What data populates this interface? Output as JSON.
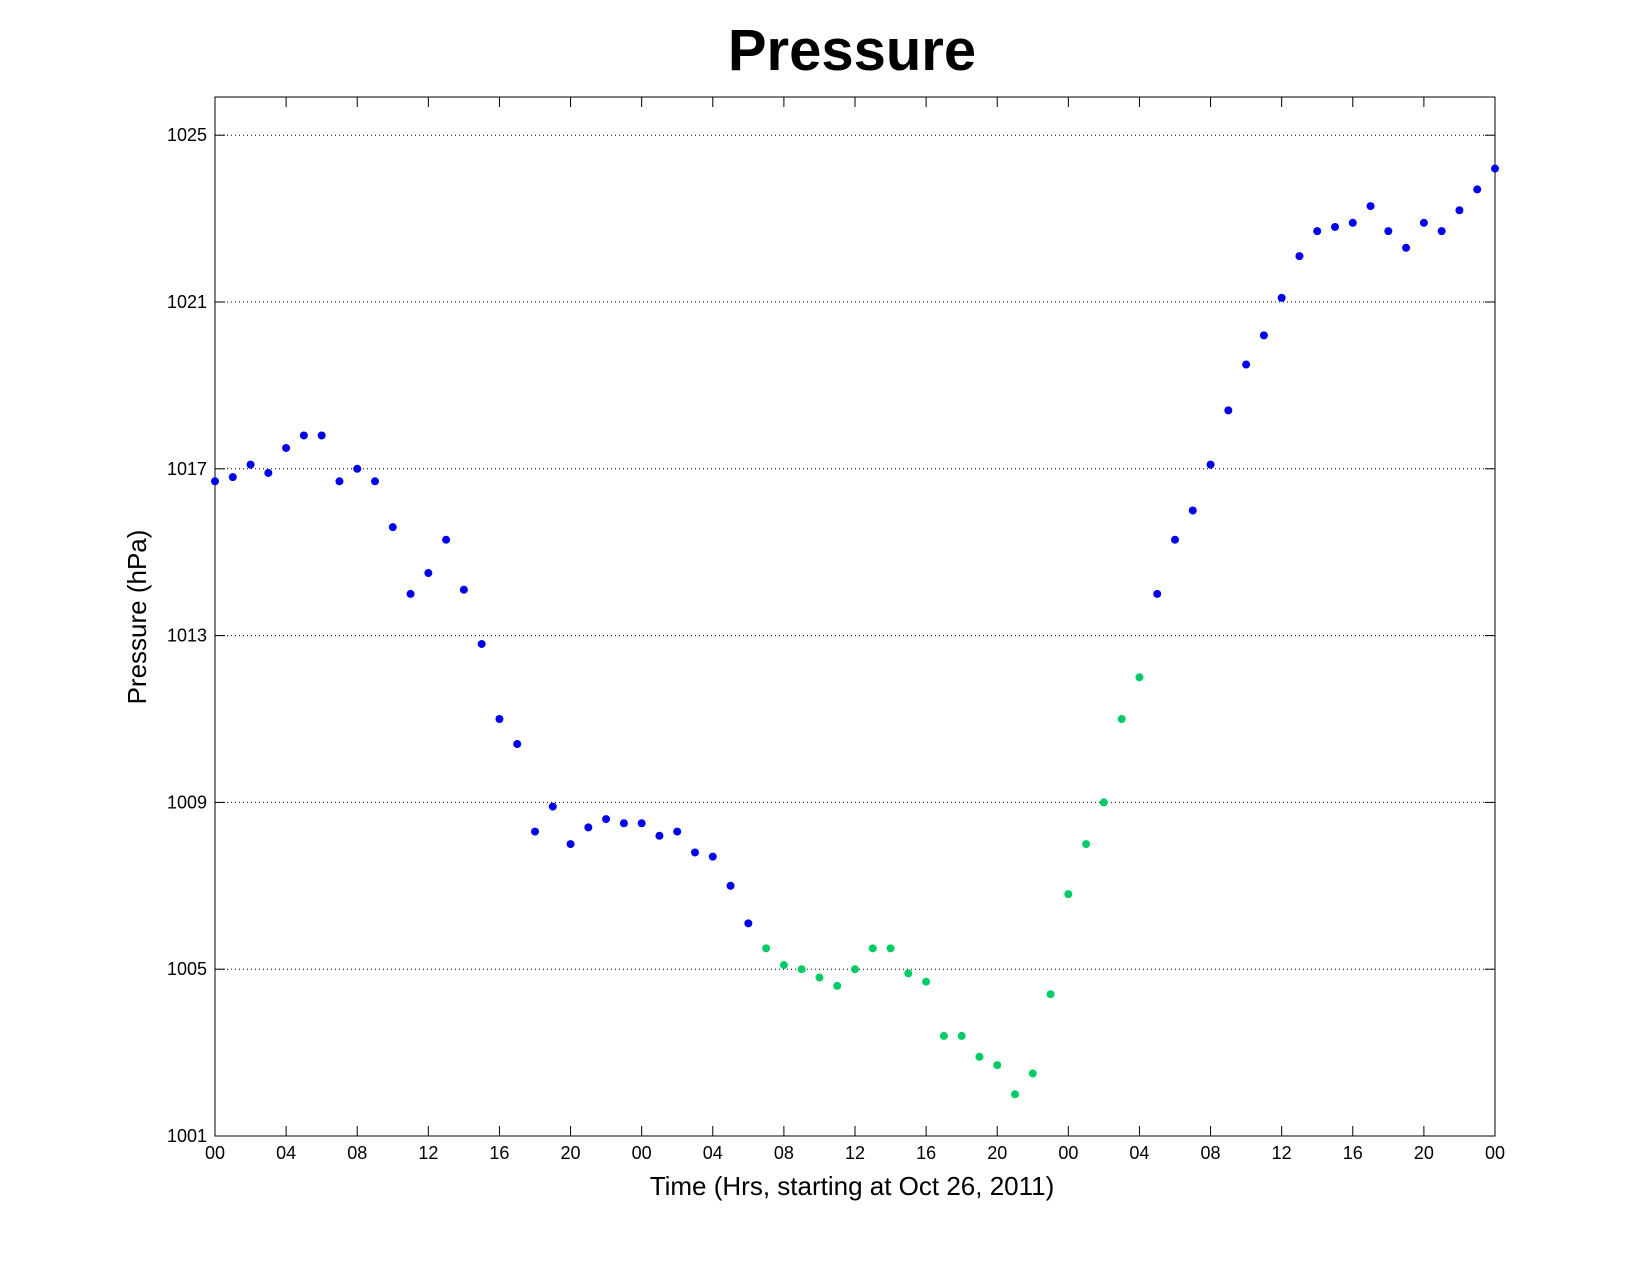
{
  "chart_data": {
    "type": "scatter",
    "title": "Pressure",
    "xlabel": "Time (Hrs, starting at Oct 26, 2011)",
    "ylabel": "Pressure (hPa)",
    "xlim": [
      0,
      72
    ],
    "ylim": [
      1001,
      1026
    ],
    "yticks": [
      1001,
      1005,
      1009,
      1013,
      1017,
      1021,
      1025
    ],
    "xticks": [
      0,
      4,
      8,
      12,
      16,
      20,
      24,
      28,
      32,
      36,
      40,
      44,
      48,
      52,
      56,
      60,
      64,
      68,
      72
    ],
    "xtick_labels": [
      "00",
      "04",
      "08",
      "12",
      "16",
      "20",
      "00",
      "04",
      "08",
      "12",
      "16",
      "20",
      "00",
      "04",
      "08",
      "12",
      "16",
      "20",
      "00"
    ],
    "grid": "horizontal",
    "series": [
      {
        "color": "#0000ee",
        "x": [
          0,
          1,
          2,
          3,
          4,
          5,
          6,
          7,
          8,
          9,
          10,
          11,
          12,
          13,
          14,
          15,
          16,
          17,
          18,
          19,
          20,
          21,
          22,
          23,
          24,
          25,
          26,
          27,
          28,
          29,
          30,
          53,
          54,
          55,
          56,
          57,
          58,
          59,
          60,
          61,
          62,
          63,
          64,
          65,
          66,
          67,
          68,
          69,
          70,
          71,
          72
        ],
        "y": [
          1016.7,
          1016.8,
          1017.1,
          1016.9,
          1017.5,
          1017.8,
          1017.8,
          1016.7,
          1017.0,
          1016.7,
          1015.6,
          1014.0,
          1014.5,
          1015.3,
          1014.1,
          1012.8,
          1011.0,
          1010.4,
          1008.3,
          1008.9,
          1008.0,
          1008.4,
          1008.6,
          1008.5,
          1008.5,
          1008.2,
          1008.3,
          1007.8,
          1007.7,
          1007.0,
          1006.1,
          1014.0,
          1015.3,
          1016.0,
          1017.1,
          1018.4,
          1019.5,
          1020.2,
          1021.1,
          1022.1,
          1022.7,
          1022.8,
          1022.9,
          1023.3,
          1022.7,
          1022.3,
          1022.9,
          1022.7,
          1023.2,
          1023.7,
          1024.2
        ]
      },
      {
        "color": "#00cc66",
        "x": [
          31,
          32,
          33,
          34,
          35,
          36,
          37,
          38,
          39,
          40,
          41,
          42,
          43,
          44,
          45,
          46,
          47,
          48,
          49,
          50,
          51,
          52
        ],
        "y": [
          1005.5,
          1005.1,
          1005.0,
          1004.8,
          1004.6,
          1005.0,
          1005.5,
          1005.5,
          1004.9,
          1004.7,
          1003.4,
          1003.4,
          1002.9,
          1002.7,
          1002.0,
          1002.5,
          1004.4,
          1006.8,
          1008.0,
          1009.0,
          1011.0,
          1012.0
        ]
      }
    ]
  }
}
